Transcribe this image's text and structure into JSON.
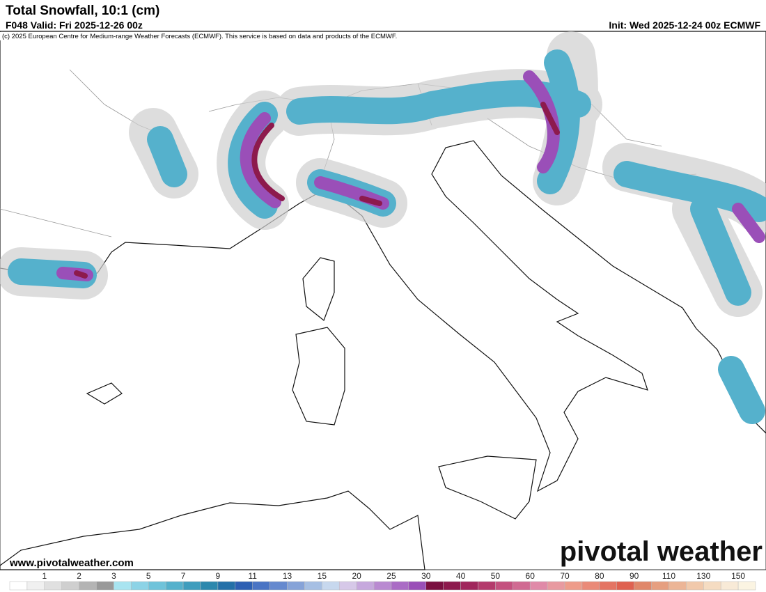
{
  "header": {
    "title": "Total Snowfall, 10:1 (cm)",
    "valid": "F048 Valid: Fri 2025-12-26 00z",
    "init": "Init: Wed 2025-12-24 00z ECMWF"
  },
  "copyright": "(c) 2025 European Centre for Medium-range Weather Forecasts (ECMWF). This service is based on data and products of the ECMWF.",
  "site": "www.pivotalweather.com",
  "logo": "pivotal weather",
  "legend": {
    "labels": [
      1,
      2,
      3,
      5,
      7,
      9,
      11,
      13,
      15,
      20,
      25,
      30,
      40,
      50,
      60,
      70,
      80,
      90,
      110,
      130,
      150
    ],
    "colors": [
      "#ffffff",
      "#f0f0f0",
      "#e0e0e0",
      "#cfcfcf",
      "#b4b4b4",
      "#999999",
      "#a8e4f0",
      "#8cd3e6",
      "#6fc3da",
      "#55b1cc",
      "#3f9dbd",
      "#2d88ad",
      "#2470a8",
      "#2d5fb3",
      "#4a74c4",
      "#6589cf",
      "#86a3d8",
      "#a6bfe3",
      "#c7d8ee",
      "#d6c8e8",
      "#c6a8dd",
      "#b98ad1",
      "#aa6cc5",
      "#9a4fb8",
      "#7a1040",
      "#8d1a4d",
      "#a0265c",
      "#b43a6c",
      "#c4517f",
      "#d06a92",
      "#e08aa8",
      "#e89aa0",
      "#ee9c8a",
      "#ea8a78",
      "#e47463",
      "#df6150",
      "#e0876a",
      "#e69f80",
      "#ecb596",
      "#f1c9ab",
      "#f5dcc2",
      "#f8ead7",
      "#fbf4e2"
    ]
  }
}
